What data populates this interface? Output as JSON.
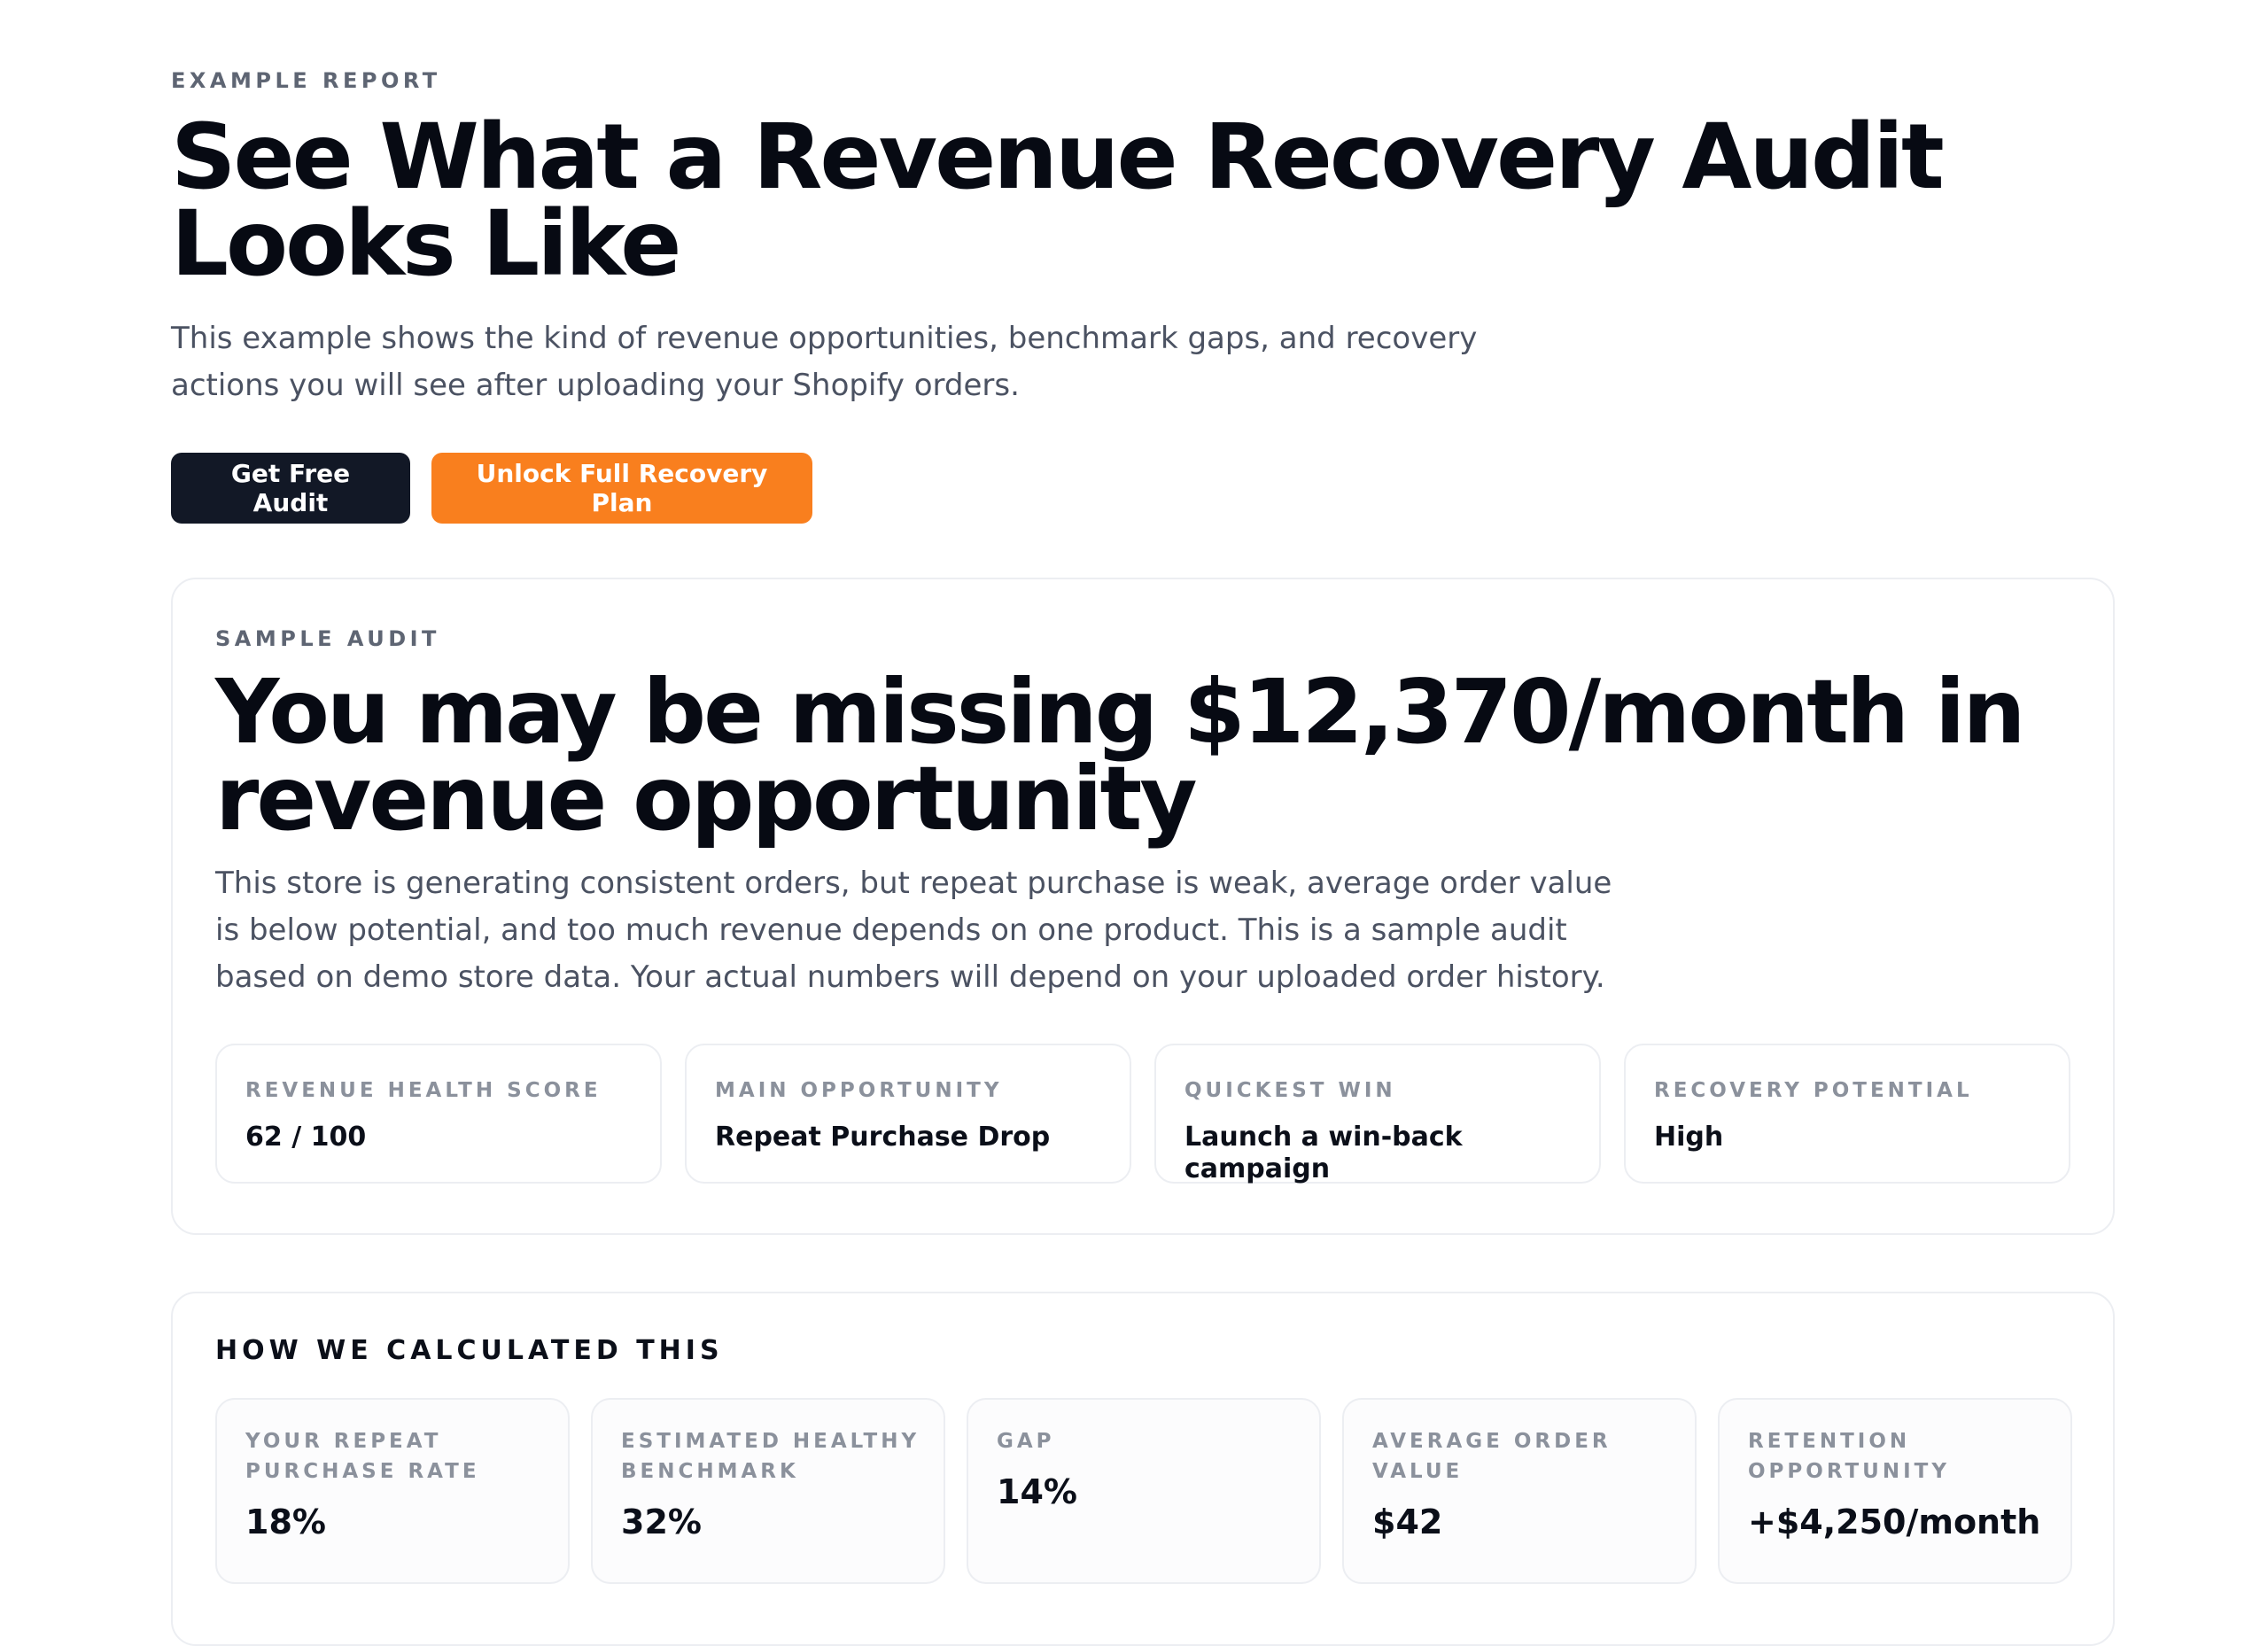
{
  "header": {
    "eyebrow": "EXAMPLE REPORT",
    "title": "See What a Revenue Recovery Audit Looks Like",
    "subtitle": "This example shows the kind of revenue opportunities, benchmark gaps, and recovery actions you will see after uploading your Shopify orders."
  },
  "actions": {
    "primary_label": "Get Free Audit",
    "secondary_label": "Unlock Full Recovery Plan"
  },
  "audit": {
    "eyebrow": "SAMPLE AUDIT",
    "headline": "You may be missing $12,370/month in revenue opportunity",
    "description": "This store is generating consistent orders, but repeat purchase is weak, average order value is below potential, and too much revenue depends on one product. This is a sample audit based on demo store data. Your actual numbers will depend on your uploaded order history.",
    "metrics": [
      {
        "label": "REVENUE HEALTH SCORE",
        "value": "62 / 100"
      },
      {
        "label": "MAIN OPPORTUNITY",
        "value": "Repeat Purchase Drop"
      },
      {
        "label": "QUICKEST WIN",
        "value": "Launch a win-back campaign"
      },
      {
        "label": "RECOVERY POTENTIAL",
        "value": "High"
      }
    ]
  },
  "calculation": {
    "title": "HOW WE CALCULATED THIS",
    "items": [
      {
        "label": "YOUR REPEAT PURCHASE RATE",
        "value": "18%"
      },
      {
        "label": "ESTIMATED HEALTHY BENCHMARK",
        "value": "32%"
      },
      {
        "label": "GAP",
        "value": "14%"
      },
      {
        "label": "AVERAGE ORDER VALUE",
        "value": "$42"
      },
      {
        "label": "RETENTION OPPORTUNITY",
        "value": "+$4,250/month"
      }
    ]
  },
  "colors": {
    "primary_button": "#121826",
    "accent_button": "#f97f1e",
    "muted_text": "#4b5262",
    "label_text": "#8b919c",
    "border": "#eceef2"
  }
}
